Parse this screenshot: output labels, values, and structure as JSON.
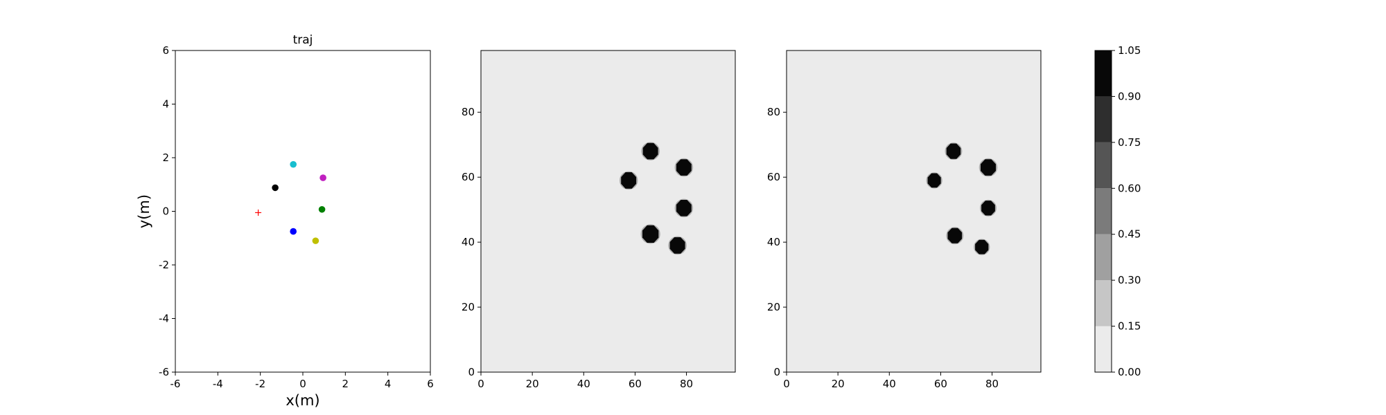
{
  "chart_data": [
    {
      "type": "scatter",
      "title": "traj",
      "xlabel": "x(m)",
      "ylabel": "y(m)",
      "xlim": [
        -6,
        6
      ],
      "ylim": [
        -6,
        6
      ],
      "xticks": [
        -6,
        -4,
        -2,
        0,
        2,
        4,
        6
      ],
      "yticks": [
        -6,
        -4,
        -2,
        0,
        2,
        4,
        6
      ],
      "grid": false,
      "points": [
        {
          "x": -0.45,
          "y": 1.75,
          "color": "#17becf",
          "marker": "dot"
        },
        {
          "x": 0.95,
          "y": 1.25,
          "color": "#c020c0",
          "marker": "dot"
        },
        {
          "x": -1.3,
          "y": 0.88,
          "color": "#000000",
          "marker": "dot"
        },
        {
          "x": 0.9,
          "y": 0.07,
          "color": "#008000",
          "marker": "dot"
        },
        {
          "x": -0.45,
          "y": -0.75,
          "color": "#0000ff",
          "marker": "dot"
        },
        {
          "x": 0.6,
          "y": -1.1,
          "color": "#bfbf00",
          "marker": "dot"
        },
        {
          "x": -2.1,
          "y": -0.05,
          "color": "#ff0000",
          "marker": "plus"
        }
      ]
    },
    {
      "type": "heatmap",
      "title": "",
      "xlim": [
        0,
        99
      ],
      "ylim": [
        0,
        99
      ],
      "xticks": [
        0,
        20,
        40,
        60,
        80
      ],
      "yticks": [
        0,
        20,
        40,
        60,
        80
      ],
      "background_value": 0.05,
      "blobs": [
        {
          "cx": 66,
          "cy": 68,
          "r": 3.2,
          "value": 1.0
        },
        {
          "cx": 79,
          "cy": 63,
          "r": 3.2,
          "value": 1.0
        },
        {
          "cx": 57.5,
          "cy": 59,
          "r": 3.2,
          "value": 1.0
        },
        {
          "cx": 79,
          "cy": 50.5,
          "r": 3.2,
          "value": 1.0
        },
        {
          "cx": 66,
          "cy": 42.5,
          "r": 3.4,
          "value": 1.0
        },
        {
          "cx": 76.5,
          "cy": 39,
          "r": 3.2,
          "value": 1.0
        }
      ]
    },
    {
      "type": "heatmap",
      "title": "",
      "xlim": [
        0,
        99
      ],
      "ylim": [
        0,
        99
      ],
      "xticks": [
        0,
        20,
        40,
        60,
        80
      ],
      "yticks": [
        0,
        20,
        40,
        60,
        80
      ],
      "background_value": 0.05,
      "blobs": [
        {
          "cx": 65,
          "cy": 68,
          "r": 3.0,
          "value": 1.0
        },
        {
          "cx": 78.5,
          "cy": 63,
          "r": 3.2,
          "value": 1.0
        },
        {
          "cx": 57.5,
          "cy": 59,
          "r": 2.8,
          "value": 1.0
        },
        {
          "cx": 78.5,
          "cy": 50.5,
          "r": 2.9,
          "value": 1.0
        },
        {
          "cx": 65.5,
          "cy": 42,
          "r": 3.0,
          "value": 1.0
        },
        {
          "cx": 76,
          "cy": 38.5,
          "r": 2.8,
          "value": 1.0
        }
      ]
    }
  ],
  "colorbar": {
    "levels": [
      0.0,
      0.15,
      0.3,
      0.45,
      0.6,
      0.75,
      0.9,
      1.05
    ],
    "tick_labels": [
      "0.00",
      "0.15",
      "0.30",
      "0.45",
      "0.60",
      "0.75",
      "0.90",
      "1.05"
    ],
    "colors": [
      "#ebebeb",
      "#c6c6c6",
      "#a0a0a0",
      "#7b7b7b",
      "#555555",
      "#2e2e2e",
      "#080808"
    ]
  }
}
